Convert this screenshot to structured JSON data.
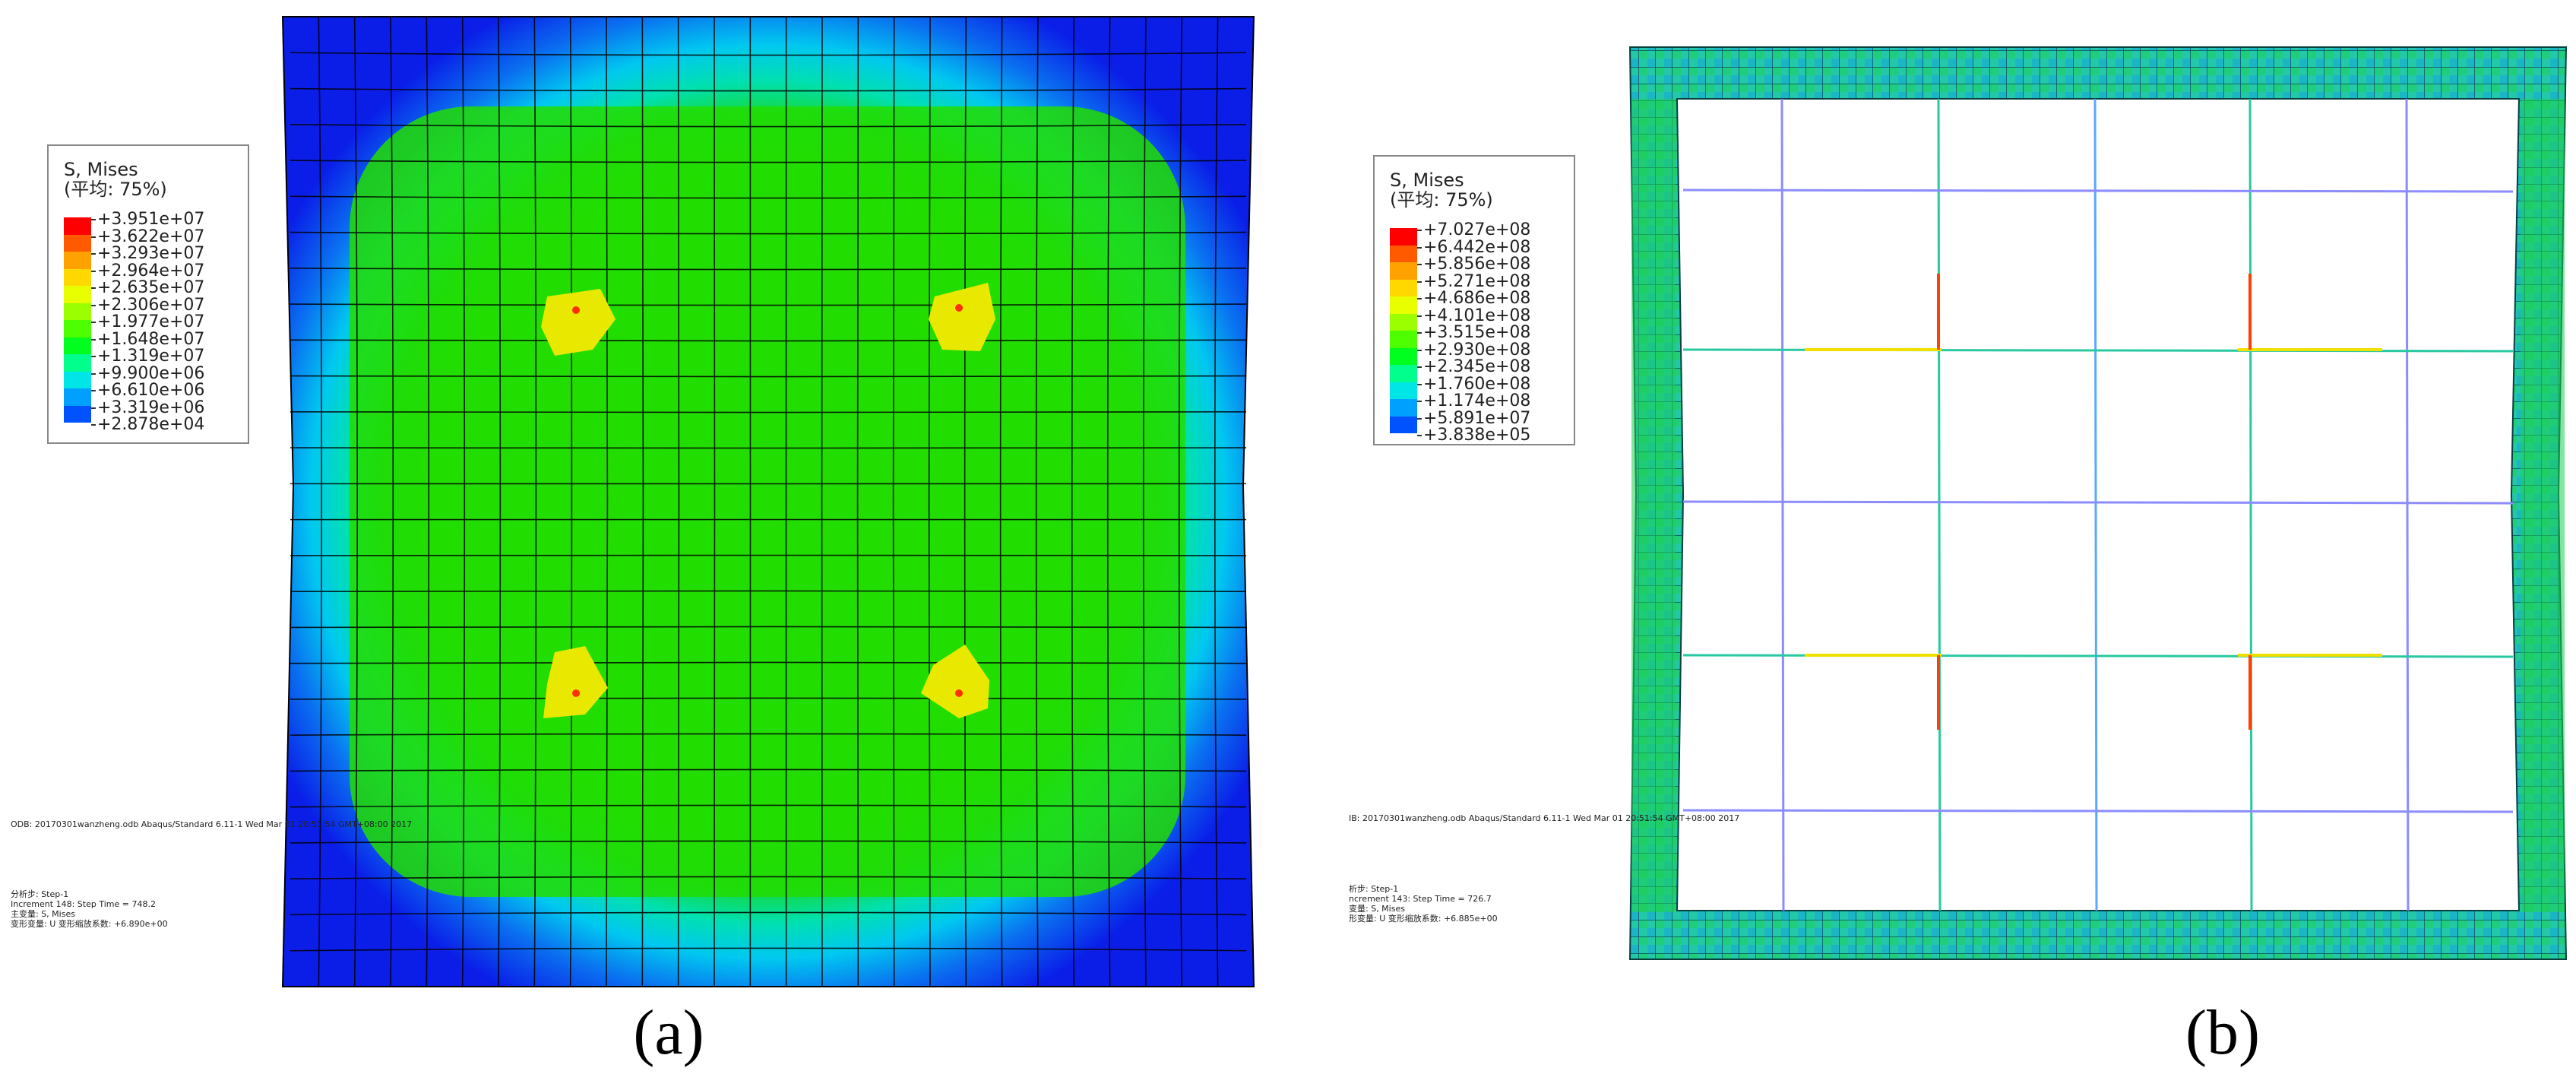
{
  "panel_a": {
    "label": "(a)",
    "legend": {
      "title": "S, Mises",
      "subtitle": "(平均: 75%)",
      "values": [
        "+3.951e+07",
        "+3.622e+07",
        "+3.293e+07",
        "+2.964e+07",
        "+2.635e+07",
        "+2.306e+07",
        "+1.977e+07",
        "+1.648e+07",
        "+1.319e+07",
        "+9.900e+06",
        "+6.610e+06",
        "+3.319e+06",
        "+2.878e+04"
      ],
      "colors": [
        "#ff0000",
        "#ff5a00",
        "#ffa200",
        "#ffd800",
        "#e8ff00",
        "#9cff00",
        "#4dff00",
        "#00ff1e",
        "#00ff8c",
        "#00e6e6",
        "#00a0ff",
        "#0052ff",
        "#0000ff"
      ]
    },
    "footer": {
      "odb": "ODB: 20170301wanzheng.odb    Abaqus/Standard 6.11-1    Wed Mar 01 20:51:54 GMT+08:00 2017",
      "step": "分析步: Step-1",
      "increment": "Increment    148: Step Time =    748.2",
      "primary": "主变量: S, Mises",
      "deformed": "变形变量: U   变形缩放系数: +6.890e+00"
    }
  },
  "panel_b": {
    "label": "(b)",
    "legend": {
      "title": "S, Mises",
      "subtitle": "(平均: 75%)",
      "values": [
        "+7.027e+08",
        "+6.442e+08",
        "+5.856e+08",
        "+5.271e+08",
        "+4.686e+08",
        "+4.101e+08",
        "+3.515e+08",
        "+2.930e+08",
        "+2.345e+08",
        "+1.760e+08",
        "+1.174e+08",
        "+5.891e+07",
        "+3.838e+05"
      ],
      "colors": [
        "#ff0000",
        "#ff5a00",
        "#ffa200",
        "#ffd800",
        "#e8ff00",
        "#9cff00",
        "#4dff00",
        "#00ff1e",
        "#00ff8c",
        "#00e6e6",
        "#00a0ff",
        "#0052ff",
        "#0000ff"
      ]
    },
    "footer": {
      "odb": "IB: 20170301wanzheng.odb    Abaqus/Standard 6.11-1    Wed Mar 01 20:51:54 GMT+08:00 2017",
      "step": "析步: Step-1",
      "increment": "ncrement    143: Step Time =    726.7",
      "primary": "变量: S, Mises",
      "deformed": "形变量: U   变形缩放系数: +6.885e+00"
    }
  }
}
